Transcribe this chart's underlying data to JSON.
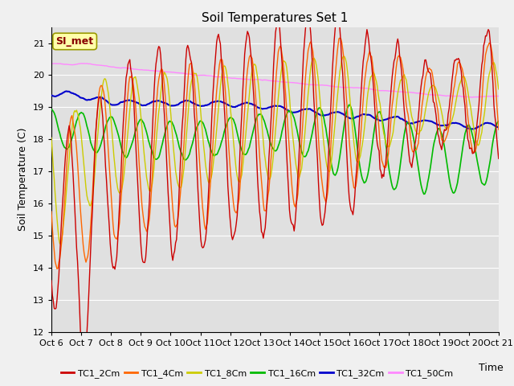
{
  "title": "Soil Temperatures Set 1",
  "xlabel": "Time",
  "ylabel": "Soil Temperature (C)",
  "ylim": [
    12.0,
    21.5
  ],
  "yticks": [
    12.0,
    13.0,
    14.0,
    15.0,
    16.0,
    17.0,
    18.0,
    19.0,
    20.0,
    21.0
  ],
  "xtick_labels": [
    "Oct 6",
    "Oct 7",
    "Oct 8",
    "Oct 9",
    "Oct 10",
    "Oct 11",
    "Oct 12",
    "Oct 13",
    "Oct 14",
    "Oct 15",
    "Oct 16",
    "Oct 17",
    "Oct 18",
    "Oct 19",
    "Oct 20",
    "Oct 21"
  ],
  "colors": {
    "TC1_2Cm": "#cc0000",
    "TC1_4Cm": "#ff6600",
    "TC1_8Cm": "#cccc00",
    "TC1_16Cm": "#00bb00",
    "TC1_32Cm": "#0000cc",
    "TC1_50Cm": "#ff88ff"
  },
  "annotation_text": "SI_met",
  "annotation_color": "#880000",
  "annotation_bg": "#ffffaa",
  "bg_color": "#e8e8e8",
  "legend_entries": [
    "TC1_2Cm",
    "TC1_4Cm",
    "TC1_8Cm",
    "TC1_16Cm",
    "TC1_32Cm",
    "TC1_50Cm"
  ]
}
